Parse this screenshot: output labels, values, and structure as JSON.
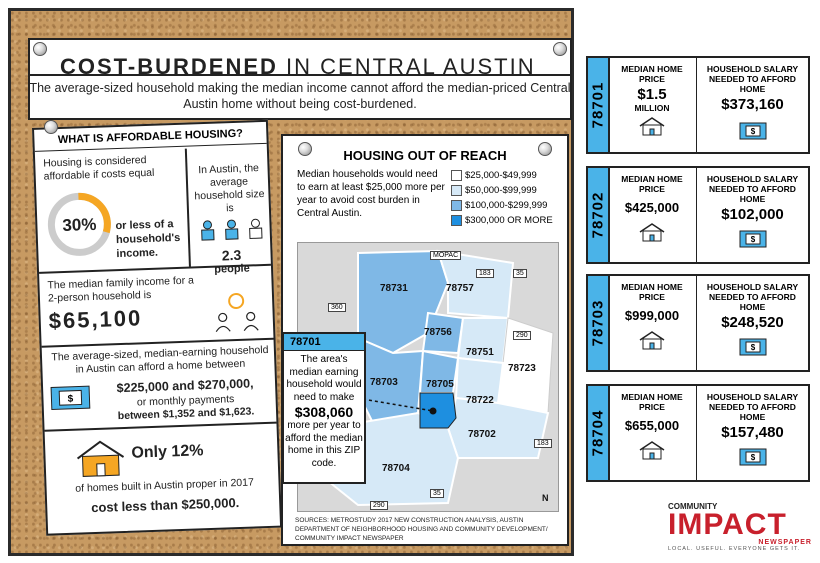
{
  "header": {
    "title_bold": "COST-BURDENED",
    "title_rest": "IN CENTRAL AUSTIN",
    "subtitle": "The average-sized household making the median income cannot afford the median-priced Central Austin home without being cost-burdened."
  },
  "affordable": {
    "heading": "WHAT IS AFFORDABLE HOUSING?",
    "considered": "Housing is considered affordable if costs equal",
    "pct": "30%",
    "pct_value": 30,
    "pct_tail": "or less of a household's income.",
    "size_text": "In Austin, the average household size is",
    "size_value": "2.3",
    "size_unit": "people",
    "median_income_text": "The median family income for a 2-person household is",
    "median_income": "$65,100",
    "afford_text1": "The average-sized, median-earning household in Austin can afford a home between",
    "afford_range": "$225,000 and $270,000,",
    "afford_text2": "or monthly payments",
    "afford_monthly": "between $1,352 and $1,623.",
    "only": "Only 12%",
    "only_text": "of homes built in Austin proper in 2017",
    "only_tail": "cost less than $250,000."
  },
  "map": {
    "title": "HOUSING OUT OF REACH",
    "description": "Median households would need to earn at least $25,000 more per year to avoid cost burden in Central Austin.",
    "legend": [
      {
        "label": "$25,000-$49,999",
        "color": "#ffffff"
      },
      {
        "label": "$50,000-$99,999",
        "color": "#d6e9f7"
      },
      {
        "label": "$100,000-$299,999",
        "color": "#7fb8e6"
      },
      {
        "label": "$300,000 OR MORE",
        "color": "#1e8fe0"
      }
    ],
    "zips": [
      "78731",
      "78757",
      "78756",
      "78751",
      "78723",
      "78703",
      "78705",
      "78722",
      "78702",
      "78704",
      "78701"
    ],
    "roads": [
      "MOPAC",
      "183",
      "35",
      "360",
      "290",
      "183",
      "35",
      "290"
    ],
    "north": "N",
    "sources": "SOURCES: METROSTUDY 2017 NEW CONSTRUCTION ANALYSIS, AUSTIN DEPARTMENT OF NEIGHBORHOOD HOUSING AND COMMUNITY DEVELOPMENT/ COMMUNITY IMPACT NEWSPAPER"
  },
  "callout": {
    "zip": "78701",
    "text1": "The area's median earning household would need to make",
    "amount": "$308,060",
    "text2": "more per year to afford the median home in this ZIP code."
  },
  "zip_cards": [
    {
      "zip": "78701",
      "price_label": "MEDIAN HOME PRICE",
      "price": "$1.5",
      "price_sub": "MILLION",
      "salary_label": "HOUSEHOLD SALARY NEEDED TO AFFORD HOME",
      "salary": "$373,160"
    },
    {
      "zip": "78702",
      "price_label": "MEDIAN HOME PRICE",
      "price": "$425,000",
      "price_sub": "",
      "salary_label": "HOUSEHOLD SALARY NEEDED TO AFFORD HOME",
      "salary": "$102,000"
    },
    {
      "zip": "78703",
      "price_label": "MEDIAN HOME PRICE",
      "price": "$999,000",
      "price_sub": "",
      "salary_label": "HOUSEHOLD SALARY NEEDED TO AFFORD HOME",
      "salary": "$248,520"
    },
    {
      "zip": "78704",
      "price_label": "MEDIAN HOME PRICE",
      "price": "$655,000",
      "price_sub": "",
      "salary_label": "HOUSEHOLD SALARY NEEDED TO AFFORD HOME",
      "salary": "$157,480"
    }
  ],
  "logo": {
    "top": "COMMUNITY",
    "main": "IMPACT",
    "sub": "NEWSPAPER",
    "tag": "LOCAL. USEFUL. EVERYONE GETS IT."
  },
  "colors": {
    "accent_blue": "#4ab3e8",
    "orange": "#f5a623",
    "brand_red": "#c8202c"
  }
}
